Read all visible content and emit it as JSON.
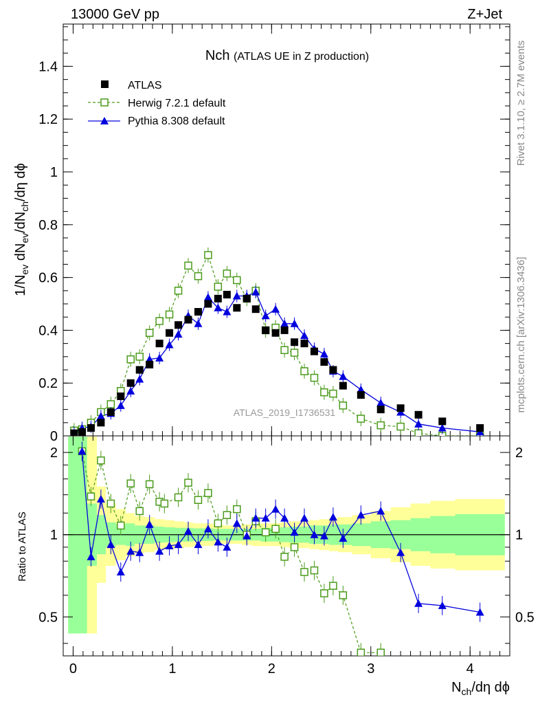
{
  "header": {
    "left": "13000 GeV pp",
    "right": "Z+Jet"
  },
  "side_labels": {
    "rivet": "Rivet 3.1.10, ≥ 2.7M events",
    "source": "mcplots.cern.ch [arXiv:1306.3436]"
  },
  "watermark": "ATLAS_2019_I1736531",
  "colors": {
    "atlas": "#000000",
    "herwig": "#4a9a1a",
    "pythia": "#0000dd",
    "band_inner": "#99ff99",
    "band_outer": "#ffff99"
  },
  "chart_data": [
    {
      "type": "scatter",
      "title": "Nch",
      "subtitle": "(ATLAS UE in Z production)",
      "ylabel": "1/N_ev dN_ev/dN_ch/dη dϕ",
      "xlim": [
        -0.1,
        4.4
      ],
      "ylim": [
        0,
        1.56
      ],
      "yticks": [
        0,
        0.2,
        0.4,
        0.6,
        0.8,
        1,
        1.2,
        1.4
      ],
      "ytick_labels": [
        "0",
        "0.2",
        "0.4",
        "0.6",
        "0.8",
        "1",
        "1.2",
        "1.4"
      ],
      "legend": {
        "placement": "top-left",
        "entries": [
          "ATLAS",
          "Herwig 7.2.1 default",
          "Pythia 8.308 default"
        ]
      },
      "series": [
        {
          "name": "ATLAS",
          "x": [
            0.01,
            0.09,
            0.18,
            0.28,
            0.38,
            0.48,
            0.58,
            0.67,
            0.77,
            0.87,
            0.97,
            1.06,
            1.16,
            1.26,
            1.36,
            1.46,
            1.55,
            1.65,
            1.75,
            1.84,
            1.94,
            2.04,
            2.13,
            2.23,
            2.33,
            2.43,
            2.53,
            2.62,
            2.72,
            2.9,
            3.1,
            3.3,
            3.48,
            3.72,
            4.1
          ],
          "y": [
            0.01,
            0.015,
            0.03,
            0.05,
            0.09,
            0.15,
            0.2,
            0.25,
            0.27,
            0.35,
            0.39,
            0.42,
            0.44,
            0.47,
            0.5,
            0.52,
            0.535,
            0.485,
            0.52,
            0.48,
            0.4,
            0.39,
            0.4,
            0.355,
            0.35,
            0.32,
            0.28,
            0.25,
            0.19,
            0.155,
            0.1,
            0.105,
            0.08,
            0.055,
            0.03
          ]
        },
        {
          "name": "Herwig 7.2.1 default",
          "x": [
            0.01,
            0.09,
            0.18,
            0.28,
            0.38,
            0.48,
            0.58,
            0.67,
            0.77,
            0.87,
            0.97,
            1.06,
            1.16,
            1.26,
            1.36,
            1.46,
            1.55,
            1.65,
            1.75,
            1.84,
            1.94,
            2.04,
            2.13,
            2.23,
            2.33,
            2.43,
            2.53,
            2.62,
            2.72,
            2.9,
            3.1,
            3.3,
            3.48,
            3.72,
            4.1
          ],
          "y": [
            0.02,
            0.025,
            0.05,
            0.09,
            0.12,
            0.17,
            0.29,
            0.3,
            0.39,
            0.435,
            0.46,
            0.55,
            0.645,
            0.605,
            0.685,
            0.565,
            0.615,
            0.59,
            0.52,
            0.55,
            0.4,
            0.41,
            0.325,
            0.315,
            0.245,
            0.22,
            0.165,
            0.16,
            0.115,
            0.065,
            0.04,
            0.035,
            0.01,
            0.0,
            0.0
          ]
        },
        {
          "name": "Pythia 8.308 default",
          "x": [
            0.01,
            0.09,
            0.18,
            0.28,
            0.38,
            0.48,
            0.58,
            0.67,
            0.77,
            0.87,
            0.97,
            1.06,
            1.16,
            1.26,
            1.36,
            1.46,
            1.55,
            1.65,
            1.75,
            1.84,
            1.94,
            2.04,
            2.13,
            2.23,
            2.33,
            2.43,
            2.53,
            2.62,
            2.72,
            2.9,
            3.1,
            3.3,
            3.48,
            3.72,
            4.1
          ],
          "y": [
            0.01,
            0.03,
            0.035,
            0.075,
            0.085,
            0.115,
            0.17,
            0.215,
            0.29,
            0.295,
            0.345,
            0.385,
            0.455,
            0.425,
            0.525,
            0.485,
            0.47,
            0.53,
            0.53,
            0.545,
            0.455,
            0.48,
            0.425,
            0.425,
            0.38,
            0.33,
            0.31,
            0.245,
            0.225,
            0.175,
            0.125,
            0.09,
            0.045,
            0.03,
            0.015
          ]
        }
      ]
    },
    {
      "type": "scatter",
      "ylabel": "Ratio to ATLAS",
      "xlabel": "N_ch/dη dϕ",
      "xlim": [
        -0.1,
        4.4
      ],
      "ylim": [
        0.36,
        2.3
      ],
      "yscale": "log",
      "xticks": [
        0,
        1,
        2,
        3,
        4
      ],
      "xtick_labels": [
        "0",
        "1",
        "2",
        "3",
        "4"
      ],
      "yticks": [
        0.5,
        1,
        2
      ],
      "ytick_labels": [
        "0.5",
        "1",
        "2"
      ],
      "reference_line": 1,
      "bands": {
        "x": [
          -0.05,
          0.14,
          0.24,
          0.33,
          0.43,
          0.53,
          0.62,
          0.72,
          0.82,
          0.92,
          1.02,
          1.12,
          1.21,
          1.31,
          1.41,
          1.51,
          1.6,
          1.7,
          1.8,
          1.89,
          1.99,
          2.09,
          2.18,
          2.28,
          2.38,
          2.48,
          2.58,
          2.67,
          2.81,
          3.0,
          3.2,
          3.4,
          3.6,
          3.85,
          4.35
        ],
        "inner": [
          2.3,
          1.3,
          1.18,
          1.11,
          1.09,
          1.1,
          1.08,
          1.08,
          1.07,
          1.065,
          1.06,
          1.06,
          1.055,
          1.055,
          1.05,
          1.05,
          1.05,
          1.05,
          1.05,
          1.06,
          1.06,
          1.065,
          1.07,
          1.07,
          1.08,
          1.08,
          1.09,
          1.09,
          1.1,
          1.12,
          1.13,
          1.15,
          1.17,
          1.19
        ],
        "outer": [
          2.3,
          2.3,
          1.5,
          1.3,
          1.24,
          1.2,
          1.17,
          1.16,
          1.14,
          1.13,
          1.12,
          1.11,
          1.1,
          1.1,
          1.09,
          1.08,
          1.08,
          1.09,
          1.1,
          1.1,
          1.1,
          1.11,
          1.12,
          1.12,
          1.13,
          1.14,
          1.15,
          1.16,
          1.18,
          1.22,
          1.26,
          1.3,
          1.33,
          1.35
        ]
      },
      "series": [
        {
          "name": "Herwig 7.2.1 default",
          "x": [
            0.09,
            0.18,
            0.28,
            0.38,
            0.48,
            0.58,
            0.67,
            0.77,
            0.87,
            0.92,
            1.06,
            1.16,
            1.26,
            1.36,
            1.46,
            1.55,
            1.65,
            1.75,
            1.84,
            1.94,
            2.04,
            2.13,
            2.23,
            2.33,
            2.43,
            2.53,
            2.62,
            2.72,
            2.9,
            3.1
          ],
          "y": [
            2.02,
            1.38,
            1.87,
            1.3,
            1.08,
            1.54,
            1.22,
            1.53,
            1.32,
            1.3,
            1.37,
            1.55,
            1.34,
            1.42,
            1.1,
            1.18,
            1.24,
            1.0,
            1.12,
            1.02,
            1.05,
            0.83,
            0.9,
            0.73,
            0.74,
            0.61,
            0.65,
            0.6,
            0.37,
            0.37
          ]
        },
        {
          "name": "Pythia 8.308 default",
          "x": [
            0.09,
            0.18,
            0.28,
            0.38,
            0.48,
            0.58,
            0.67,
            0.77,
            0.87,
            0.97,
            1.06,
            1.16,
            1.26,
            1.36,
            1.46,
            1.55,
            1.65,
            1.75,
            1.84,
            1.94,
            2.04,
            2.13,
            2.23,
            2.33,
            2.43,
            2.53,
            2.62,
            2.72,
            2.9,
            3.1,
            3.3,
            3.48,
            3.72,
            4.1
          ],
          "y": [
            2.02,
            0.83,
            1.35,
            0.92,
            0.73,
            0.87,
            0.86,
            1.09,
            0.87,
            0.91,
            0.92,
            1.03,
            0.92,
            1.05,
            0.94,
            0.9,
            1.1,
            0.99,
            1.15,
            1.15,
            1.24,
            1.15,
            1.02,
            1.15,
            1.0,
            0.99,
            1.16,
            0.97,
            1.18,
            1.22,
            0.86,
            0.56,
            0.55,
            0.52
          ]
        }
      ]
    }
  ]
}
